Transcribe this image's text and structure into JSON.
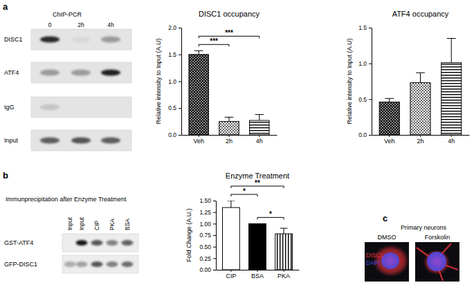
{
  "figure": {
    "gel_a": {
      "panel": "a",
      "title": "ChIP-PCR",
      "lanes": [
        "0",
        "2h",
        "4h"
      ],
      "rows": [
        {
          "label": "DISC1",
          "bands": [
            0.9,
            0.05,
            0.35
          ]
        },
        {
          "label": "ATF4",
          "bands": [
            0.35,
            0.35,
            0.95
          ]
        },
        {
          "label": "IgG",
          "bands": [
            0.15,
            0,
            0
          ]
        },
        {
          "label": "Input",
          "bands": [
            0.65,
            0.7,
            0.65
          ]
        }
      ]
    },
    "gel_b": {
      "panel": "b",
      "title": "Immunprecipitation after Enzyme Treatment",
      "lanes": [
        "Input",
        "Input",
        "CIP",
        "PKA",
        "BSA"
      ],
      "rows": [
        {
          "label": "GST-ATF4",
          "bands": [
            0,
            1,
            0.7,
            0.5,
            0.65
          ]
        },
        {
          "label": "GFP-DISC1",
          "bands": [
            0.3,
            0.35,
            0.7,
            0.5,
            0.6
          ]
        }
      ]
    },
    "micro_c": {
      "panel": "c",
      "title": "Primary neurons",
      "conditions": [
        "DMSO",
        "Forskolin"
      ],
      "stains": [
        {
          "label": "DISC1",
          "color": "#e0303a"
        },
        {
          "label": "DAPI",
          "color": "#4a48e0"
        }
      ]
    }
  },
  "chart_data": [
    {
      "type": "bar",
      "title": "DISC1 occupancy",
      "y_label": "Relative intensity to Input (A.U)",
      "categories": [
        "Veh",
        "2h",
        "4h"
      ],
      "values": [
        1.5,
        0.25,
        0.27
      ],
      "errors": [
        0.07,
        0.08,
        0.11
      ],
      "color": "#000000",
      "ylim": [
        0,
        2
      ],
      "yticks": [
        {
          "value": 0,
          "label": "0.0"
        },
        0.5,
        {
          "value": 1,
          "label": "1.0"
        },
        1.5,
        {
          "value": 2,
          "label": "2.0"
        }
      ],
      "annotations": [
        {
          "from": "Veh",
          "to": "2h",
          "text": "***"
        },
        {
          "from": "Veh",
          "to": "4h",
          "text": "***"
        }
      ]
    },
    {
      "type": "bar",
      "title": "ATF4 occupancy",
      "y_label": "Relative intensity to Input (A.U)",
      "categories": [
        "Veh",
        "2h",
        "4h"
      ],
      "values": [
        0.46,
        0.73,
        1.01
      ],
      "errors": [
        0.05,
        0.14,
        0.34
      ],
      "color": "#000000",
      "ylim": [
        0,
        1.5
      ],
      "yticks": [
        {
          "value": 0,
          "label": "0.0"
        },
        0.5,
        {
          "value": 1,
          "label": "1.0"
        },
        1.5
      ]
    },
    {
      "type": "bar",
      "title": "Enzyme Treatment",
      "y_label": "Fold Change (A.U.)",
      "categories": [
        "CIP",
        "BSA",
        "PKA"
      ],
      "values": [
        1.35,
        1.0,
        0.78
      ],
      "errors": [
        0.15,
        0,
        0.12
      ],
      "colors": [
        "#ffffff",
        "#000000",
        "#ffffff"
      ],
      "ylim": [
        0,
        1.5
      ],
      "yticks": [
        {
          "value": 0,
          "label": "0.00"
        },
        {
          "value": 0.25,
          "label": "0.25"
        },
        {
          "value": 0.5,
          "label": "0.50"
        },
        {
          "value": 0.75,
          "label": "0.75"
        },
        {
          "value": 1,
          "label": "1.00"
        },
        {
          "value": 1.25,
          "label": "1.25"
        },
        {
          "value": 1.5,
          "label": "1.50"
        }
      ],
      "annotations": [
        {
          "from": "CIP",
          "to": "BSA",
          "text": "*"
        },
        {
          "from": "CIP",
          "to": "PKA",
          "text": "**"
        },
        {
          "from": "BSA",
          "to": "PKA",
          "text": "*"
        }
      ]
    }
  ]
}
